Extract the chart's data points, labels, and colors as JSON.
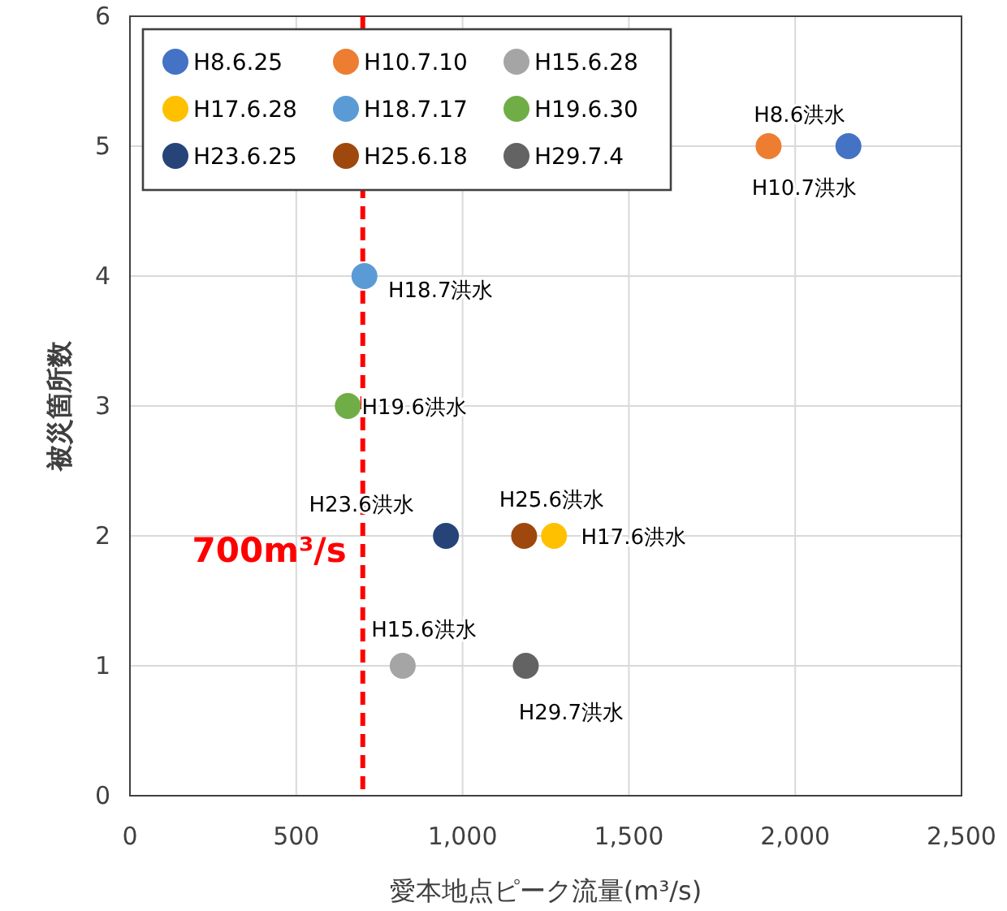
{
  "chart_data": {
    "type": "scatter",
    "xlabel": "愛本地点ピーク流量(m³/s)",
    "ylabel": "被災箇所数",
    "xlim": [
      0,
      2500
    ],
    "ylim": [
      0,
      6
    ],
    "xticks": [
      0,
      500,
      {
        "value": 1000,
        "label": "1,000"
      },
      {
        "value": 1500,
        "label": "1,500"
      },
      {
        "value": 2000,
        "label": "2,000"
      },
      {
        "value": 2500,
        "label": "2,500"
      }
    ],
    "yticks": [
      0,
      1,
      2,
      3,
      4,
      5,
      6
    ],
    "grid": true,
    "legend": "top left",
    "marker": "circle",
    "series": [
      {
        "name": "H8.6.25",
        "color": "#4472c4",
        "x": [
          2160
        ],
        "values": [
          5
        ]
      },
      {
        "name": "H10.7.10",
        "color": "#ed7d31",
        "x": [
          1920
        ],
        "values": [
          5
        ]
      },
      {
        "name": "H15.6.28",
        "color": "#a5a5a5",
        "x": [
          820
        ],
        "values": [
          1
        ]
      },
      {
        "name": "H17.6.28",
        "color": "#ffc000",
        "x": [
          1275
        ],
        "values": [
          2
        ]
      },
      {
        "name": "H18.7.17",
        "color": "#5b9bd5",
        "x": [
          705
        ],
        "values": [
          4
        ]
      },
      {
        "name": "H19.6.30",
        "color": "#70ad47",
        "x": [
          655
        ],
        "values": [
          3
        ]
      },
      {
        "name": "H23.6.25",
        "color": "#264478",
        "x": [
          950
        ],
        "values": [
          2
        ]
      },
      {
        "name": "H25.6.18",
        "color": "#9e480e",
        "x": [
          1185
        ],
        "values": [
          2
        ]
      },
      {
        "name": "H29.7.4",
        "color": "#636363",
        "x": [
          1190
        ],
        "values": [
          1
        ]
      }
    ],
    "annotations": [
      {
        "text": "H8.6洪水",
        "x": 2160,
        "y": 5
      },
      {
        "text": "H10.7洪水",
        "x": 1920,
        "y": 5
      },
      {
        "text": "H15.6洪水",
        "x": 820,
        "y": 1
      },
      {
        "text": "H17.6洪水",
        "x": 1275,
        "y": 2
      },
      {
        "text": "H18.7洪水",
        "x": 705,
        "y": 4
      },
      {
        "text": "H19.6洪水",
        "x": 655,
        "y": 3
      },
      {
        "text": "H23.6洪水",
        "x": 950,
        "y": 2
      },
      {
        "text": "H25.6洪水",
        "x": 1185,
        "y": 2
      },
      {
        "text": "H29.7洪水",
        "x": 1190,
        "y": 1
      }
    ],
    "ref_lines": [
      {
        "axis": "x",
        "value": 700,
        "label": "700m³/s",
        "color": "#ff0000",
        "line_style": "dashed"
      }
    ]
  }
}
